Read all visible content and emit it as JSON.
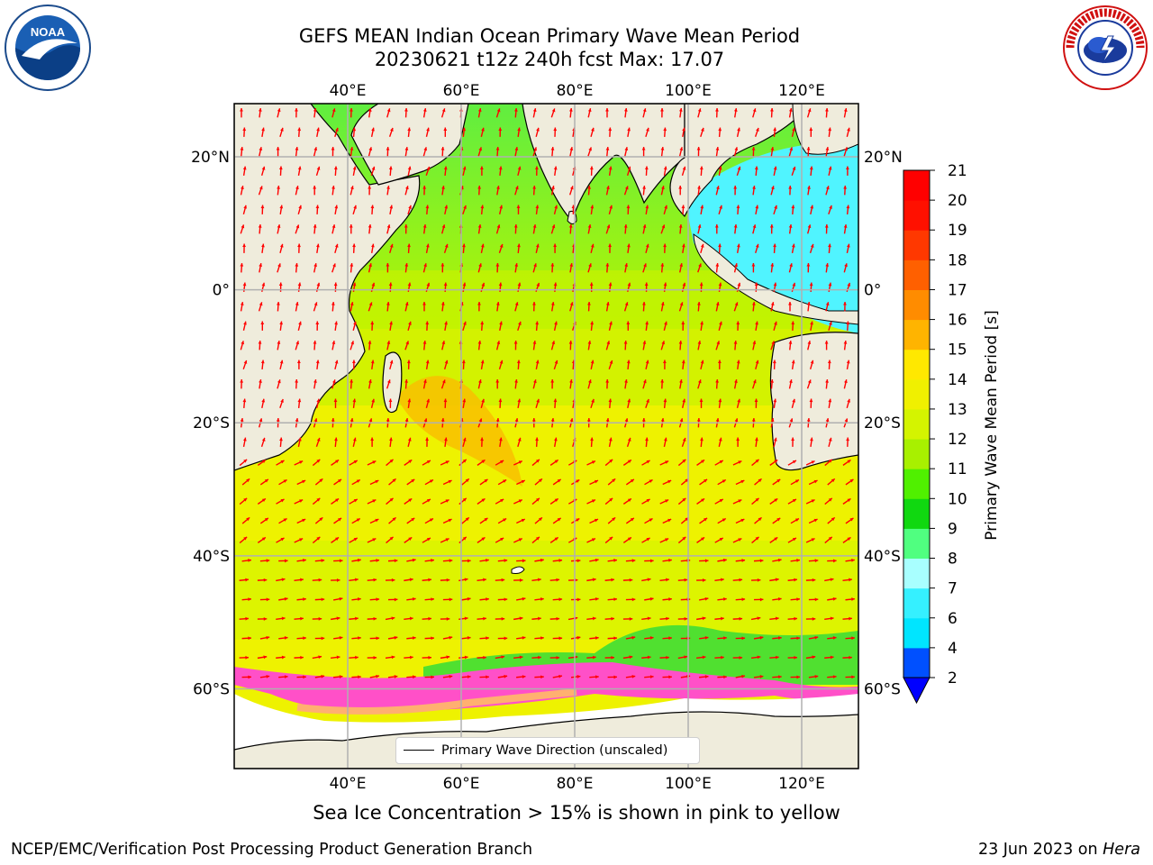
{
  "title": {
    "line1": "GEFS MEAN Indian Ocean Primary Wave Mean Period",
    "line2": "20230621 t12z 240h fcst   Max: 17.07"
  },
  "map": {
    "lon_range": [
      20,
      130
    ],
    "lat_range": [
      -72,
      28
    ],
    "lon_ticks": [
      "40°E",
      "60°E",
      "80°E",
      "100°E",
      "120°E"
    ],
    "lat_ticks_left": [
      "20°N",
      "0°",
      "20°S",
      "40°S",
      "60°S"
    ],
    "lat_ticks_right": [
      "20°N",
      "0°",
      "20°S",
      "40°S",
      "60°S"
    ],
    "arrow_color": "#ff0000",
    "land_color": "#efecdc",
    "grid_color": "#b0b0b0",
    "legend_label": "Primary Wave Direction (unscaled)"
  },
  "colorbar": {
    "label": "Primary Wave Mean Period [s]",
    "ticks": [
      "2",
      "4",
      "6",
      "7",
      "8",
      "9",
      "10",
      "11",
      "12",
      "13",
      "14",
      "15",
      "16",
      "17",
      "18",
      "19",
      "20",
      "21"
    ],
    "colors": [
      "#0050ff",
      "#00e5ff",
      "#35f0ff",
      "#a8ffff",
      "#50ff80",
      "#10d810",
      "#50f000",
      "#a8f000",
      "#d4f400",
      "#f0f000",
      "#ffe800",
      "#ffb400",
      "#ff8c00",
      "#ff6000",
      "#ff3800",
      "#ff1000",
      "#ff0000"
    ],
    "extend_color": "#0000ff"
  },
  "logos": {
    "noaa": "NOAA",
    "nws": "NATIONAL WEATHER SERVICE"
  },
  "footer": {
    "note": "Sea Ice Concentration > 15% is shown in pink to yellow",
    "left": "NCEP/EMC/Verification Post Processing Product Generation Branch",
    "right_date": "23 Jun 2023 on ",
    "right_host": "Hera"
  }
}
